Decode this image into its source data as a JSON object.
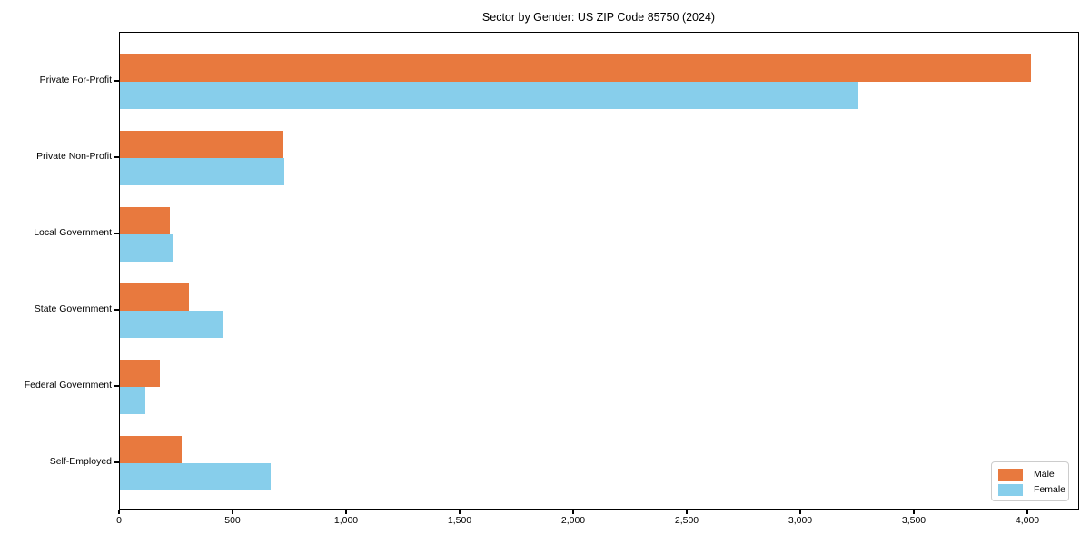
{
  "chart_data": {
    "type": "bar",
    "orientation": "horizontal",
    "title": "Sector by Gender: US ZIP Code 85750 (2024)",
    "categories": [
      "Private For-Profit",
      "Private Non-Profit",
      "Local Government",
      "State Government",
      "Federal Government",
      "Self-Employed"
    ],
    "series": [
      {
        "name": "Male",
        "color": "#E8793E",
        "values": [
          4012,
          719,
          220,
          303,
          175,
          271
        ]
      },
      {
        "name": "Female",
        "color": "#87CEEB",
        "values": [
          3252,
          723,
          233,
          456,
          113,
          663
        ]
      }
    ],
    "xlabel": "",
    "ylabel": "",
    "xlim": [
      0,
      4220
    ],
    "xticks": [
      0,
      500,
      1000,
      1500,
      2000,
      2500,
      3000,
      3500,
      4000
    ],
    "xtick_labels": [
      "0",
      "500",
      "1,000",
      "1,500",
      "2,000",
      "2,500",
      "3,000",
      "3,500",
      "4,000"
    ],
    "grid": false,
    "legend_position": "lower right",
    "colors": {
      "male_bar": "#E8793E",
      "female_bar": "#87CEEB",
      "axis": "#000000",
      "legend_border": "#CCCCCC",
      "background": "#FFFFFF"
    }
  }
}
